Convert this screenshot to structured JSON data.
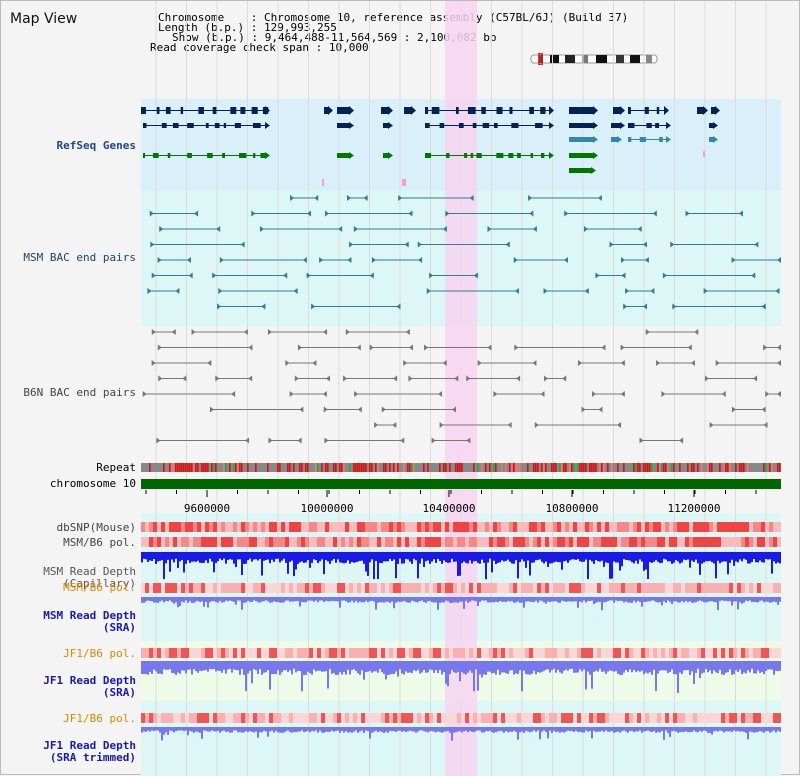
{
  "title": "Map View",
  "info": {
    "chromosome_label": "Chromosome",
    "chromosome_value": "Chromosome 10, reference assembly (C57BL/6J) (Build 37)",
    "length_label": "Length (b.p.)",
    "length_value": "129,993,255",
    "show_label": "Show (b.p.)",
    "show_value": "9,464,488-11,564,569 : 2,100,082 bp",
    "coverage_label": "Read coverage check span",
    "coverage_value": "10,000"
  },
  "tracks": {
    "refseq": "RefSeq Genes",
    "msm_bac": "MSM BAC end pairs",
    "b6n_bac": "B6N BAC end pairs",
    "repeat": "Repeat",
    "chromosome": "chromosome 10",
    "dbsnp": "dbSNP(Mouse)",
    "msm_b6_pol_1": "MSM/B6 pol.",
    "msm_depth_cap_1": "MSM Read Depth",
    "msm_depth_cap_2": "(Capillary)",
    "msm_b6_pol_2": "MSM/B6 pol.",
    "msm_depth_sra_1": "MSM Read Depth",
    "msm_depth_sra_2": "(SRA)",
    "jf1_b6_pol_1": "JF1/B6 pol.",
    "jf1_depth_sra_1": "JF1 Read Depth",
    "jf1_depth_sra_2": "(SRA)",
    "jf1_b6_pol_2": "JF1/B6 pol.",
    "jf1_depth_trim_1": "JF1 Read Depth",
    "jf1_depth_trim_2": "(SRA trimmed)"
  },
  "axis": {
    "ticks": [
      "9600000",
      "10000000",
      "10400000",
      "10800000",
      "11200000"
    ]
  },
  "colors": {
    "refseq_bg": "#d9f0fa",
    "msm_bac_bg": "#ddf6f6",
    "b6n_bac_bg": "#f4f4f4",
    "lower_bg": "#ddf6f6",
    "jf1_bg": "#eefbe8",
    "highlight": "#f7d4f0",
    "gene_dark": "#002255",
    "gene_mid": "#3388aa",
    "gene_green": "#007700",
    "msm_bac": "#2f7f8f",
    "b6n_bac": "#777777",
    "chromosome": "#006600",
    "depth_capillary": "#1a1ae6",
    "depth_sra": "#7777ee",
    "msm_label": "#224488",
    "pol_label_orange": "#dd8800",
    "depth_label_blue": "#1a1aaa"
  }
}
